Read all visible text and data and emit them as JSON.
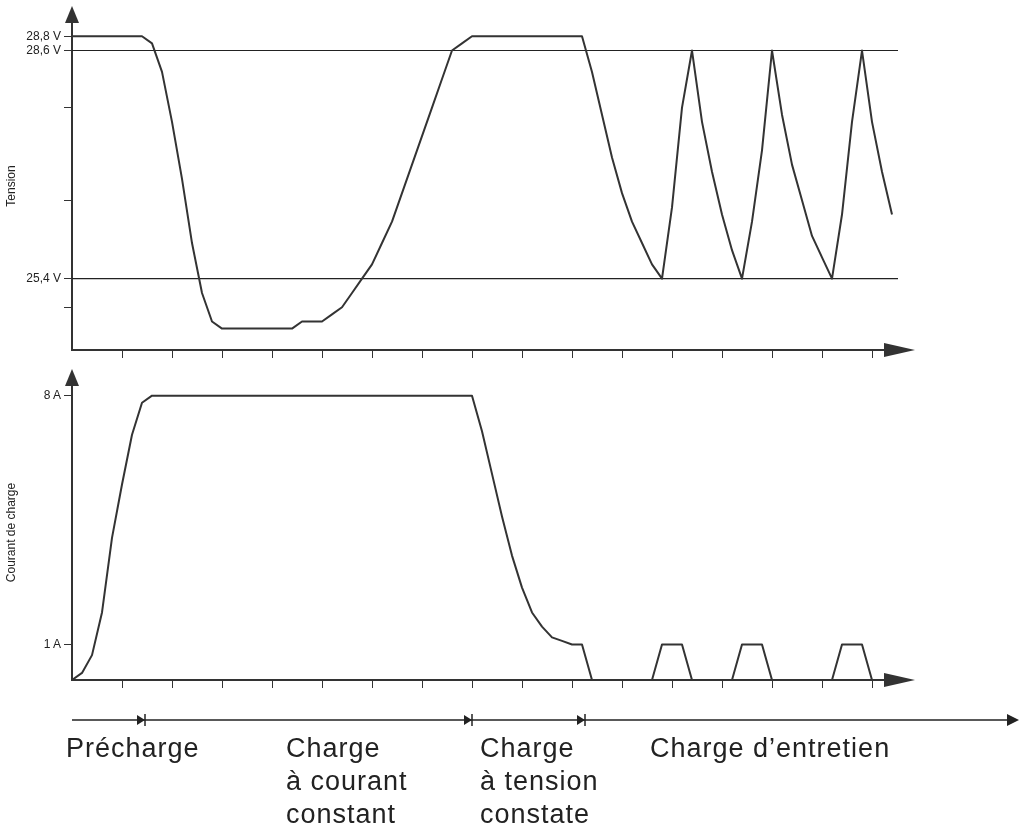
{
  "chart_data": [
    {
      "type": "line",
      "ylabel": "Tension",
      "categories": [
        null,
        null,
        null,
        null,
        null,
        null,
        null,
        null,
        null,
        null,
        null,
        null,
        null,
        null,
        null,
        null,
        null,
        null,
        null,
        null,
        null,
        null,
        null,
        null,
        null,
        null,
        null,
        null,
        null,
        null,
        null,
        null,
        null,
        null,
        null,
        null,
        null,
        null,
        null,
        null,
        null,
        null,
        null,
        null,
        null,
        null,
        null,
        null,
        null,
        null,
        null,
        null,
        null,
        null,
        null,
        null,
        null,
        null,
        null,
        null,
        null,
        null,
        null,
        null,
        null,
        null,
        null,
        null,
        null,
        null,
        null,
        null,
        null,
        null,
        null,
        null,
        null,
        null,
        null,
        null,
        null,
        null,
        null,
        null
      ],
      "series": [
        {
          "color": "#333333",
          "values": [
            28.8,
            28.8,
            28.8,
            28.8,
            28.8,
            28.8,
            28.8,
            28.8,
            28.7,
            28.3,
            27.6,
            26.8,
            25.9,
            25.2,
            24.8,
            24.7,
            24.7,
            24.7,
            24.7,
            24.7,
            24.7,
            24.7,
            24.7,
            24.8,
            24.8,
            24.8,
            24.9,
            25.0,
            25.2,
            25.4,
            25.6,
            25.9,
            26.2,
            26.6,
            27.0,
            27.4,
            27.8,
            28.2,
            28.6,
            28.7,
            28.8,
            28.8,
            28.8,
            28.8,
            28.8,
            28.8,
            28.8,
            28.8,
            28.8,
            28.8,
            28.8,
            28.8,
            28.3,
            27.7,
            27.1,
            26.6,
            26.2,
            25.9,
            25.6,
            25.4,
            26.4,
            27.8,
            28.6,
            27.6,
            26.9,
            26.3,
            25.8,
            25.4,
            26.2,
            27.2,
            28.6,
            27.7,
            27.0,
            26.5,
            26.0,
            25.7,
            25.4,
            26.3,
            27.6,
            28.6,
            27.6,
            26.9,
            26.3,
            null
          ]
        }
      ],
      "ylim": [
        24.4,
        29.0
      ],
      "yticks": [
        {
          "value": 28.8,
          "label": "28,8 V"
        },
        {
          "value": 28.6,
          "label": "28,6 V"
        },
        {
          "value": 27.8,
          "label": null
        },
        {
          "value": 26.5,
          "label": null
        },
        {
          "value": 25.4,
          "label": "25,4 V"
        },
        {
          "value": 25.0,
          "label": null
        }
      ],
      "ref_lines": [
        {
          "axis": "y",
          "value": 28.6,
          "color": "#222222"
        },
        {
          "axis": "y",
          "value": 25.4,
          "color": "#222222"
        }
      ],
      "tick_labels": "y",
      "grid": false,
      "legend": false,
      "marker": "none",
      "line_style": "solid"
    },
    {
      "type": "line",
      "ylabel": "Courant de charge",
      "categories": [
        null,
        null,
        null,
        null,
        null,
        null,
        null,
        null,
        null,
        null,
        null,
        null,
        null,
        null,
        null,
        null,
        null,
        null,
        null,
        null,
        null,
        null,
        null,
        null,
        null,
        null,
        null,
        null,
        null,
        null,
        null,
        null,
        null,
        null,
        null,
        null,
        null,
        null,
        null,
        null,
        null,
        null,
        null,
        null,
        null,
        null,
        null,
        null,
        null,
        null,
        null,
        null,
        null,
        null,
        null,
        null,
        null,
        null,
        null,
        null,
        null,
        null,
        null,
        null,
        null,
        null,
        null,
        null,
        null,
        null,
        null,
        null,
        null,
        null,
        null,
        null,
        null,
        null,
        null,
        null,
        null,
        null,
        null,
        null
      ],
      "series": [
        {
          "color": "#333333",
          "values": [
            0,
            0.2,
            0.7,
            1.9,
            4.0,
            5.5,
            6.9,
            7.8,
            8,
            8,
            8,
            8,
            8,
            8,
            8,
            8,
            8,
            8,
            8,
            8,
            8,
            8,
            8,
            8,
            8,
            8,
            8,
            8,
            8,
            8,
            8,
            8,
            8,
            8,
            8,
            8,
            8,
            8,
            8,
            8,
            8,
            7.0,
            5.8,
            4.6,
            3.5,
            2.6,
            1.9,
            1.5,
            1.2,
            1.1,
            1,
            1,
            0,
            0,
            0,
            0,
            0,
            0,
            0,
            1,
            1,
            1,
            0,
            0,
            0,
            0,
            0,
            1,
            1,
            1,
            0,
            0,
            0,
            0,
            0,
            0,
            0,
            1,
            1,
            1,
            0,
            0,
            0,
            0
          ]
        }
      ],
      "ylim": [
        0,
        8.3
      ],
      "yticks": [
        {
          "value": 8,
          "label": "8 A"
        },
        {
          "value": 1,
          "label": "1 A"
        }
      ],
      "annotations": [
        "Précharge",
        "Charge à courant constant",
        "Charge à tension constate",
        "Charge d’entretien"
      ],
      "tick_labels": "y",
      "grid": false,
      "legend": false,
      "marker": "none",
      "line_style": "solid"
    }
  ]
}
